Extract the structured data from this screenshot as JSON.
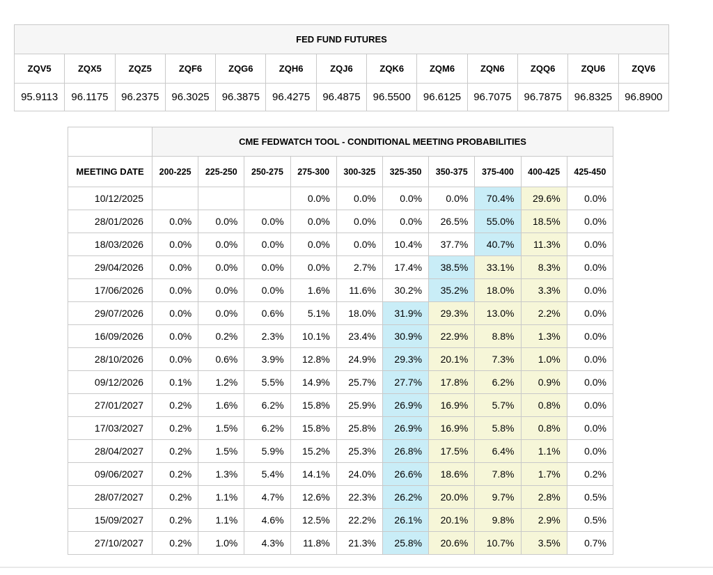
{
  "colors": {
    "blue_highlight": "#c9edf7",
    "yellow_highlight": "#f6f6d8",
    "header_bg": "#f6f6f6",
    "border": "#c9c9c9"
  },
  "chart_data": [
    {
      "type": "table",
      "title": "FED FUND FUTURES",
      "columns": [
        "ZQV5",
        "ZQX5",
        "ZQZ5",
        "ZQF6",
        "ZQG6",
        "ZQH6",
        "ZQJ6",
        "ZQK6",
        "ZQM6",
        "ZQN6",
        "ZQQ6",
        "ZQU6",
        "ZQV6"
      ],
      "values": [
        "95.9113",
        "96.1175",
        "96.2375",
        "96.3025",
        "96.3875",
        "96.4275",
        "96.4875",
        "96.5500",
        "96.6125",
        "96.7075",
        "96.7875",
        "96.8325",
        "96.8900"
      ]
    },
    {
      "type": "table",
      "title": "CME FEDWATCH TOOL - CONDITIONAL MEETING PROBABILITIES",
      "date_column": "MEETING DATE",
      "rate_columns": [
        "200-225",
        "225-250",
        "250-275",
        "275-300",
        "300-325",
        "325-350",
        "350-375",
        "375-400",
        "400-425",
        "425-450"
      ],
      "rows": [
        {
          "date": "10/12/2025",
          "values": [
            "",
            "",
            "",
            "0.0%",
            "0.0%",
            "0.0%",
            "0.0%",
            "70.4%",
            "29.6%",
            "0.0%"
          ],
          "blue": 7,
          "yellow": [
            8
          ]
        },
        {
          "date": "28/01/2026",
          "values": [
            "0.0%",
            "0.0%",
            "0.0%",
            "0.0%",
            "0.0%",
            "0.0%",
            "26.5%",
            "55.0%",
            "18.5%",
            "0.0%"
          ],
          "blue": 7,
          "yellow": [
            8
          ]
        },
        {
          "date": "18/03/2026",
          "values": [
            "0.0%",
            "0.0%",
            "0.0%",
            "0.0%",
            "0.0%",
            "10.4%",
            "37.7%",
            "40.7%",
            "11.3%",
            "0.0%"
          ],
          "blue": 7,
          "yellow": [
            8
          ]
        },
        {
          "date": "29/04/2026",
          "values": [
            "0.0%",
            "0.0%",
            "0.0%",
            "0.0%",
            "2.7%",
            "17.4%",
            "38.5%",
            "33.1%",
            "8.3%",
            "0.0%"
          ],
          "blue": 6,
          "yellow": [
            7,
            8
          ]
        },
        {
          "date": "17/06/2026",
          "values": [
            "0.0%",
            "0.0%",
            "0.0%",
            "1.6%",
            "11.6%",
            "30.2%",
            "35.2%",
            "18.0%",
            "3.3%",
            "0.0%"
          ],
          "blue": 6,
          "yellow": [
            7,
            8
          ]
        },
        {
          "date": "29/07/2026",
          "values": [
            "0.0%",
            "0.0%",
            "0.6%",
            "5.1%",
            "18.0%",
            "31.9%",
            "29.3%",
            "13.0%",
            "2.2%",
            "0.0%"
          ],
          "blue": 5,
          "yellow": [
            6,
            7,
            8
          ]
        },
        {
          "date": "16/09/2026",
          "values": [
            "0.0%",
            "0.2%",
            "2.3%",
            "10.1%",
            "23.4%",
            "30.9%",
            "22.9%",
            "8.8%",
            "1.3%",
            "0.0%"
          ],
          "blue": 5,
          "yellow": [
            6,
            7,
            8
          ]
        },
        {
          "date": "28/10/2026",
          "values": [
            "0.0%",
            "0.6%",
            "3.9%",
            "12.8%",
            "24.9%",
            "29.3%",
            "20.1%",
            "7.3%",
            "1.0%",
            "0.0%"
          ],
          "blue": 5,
          "yellow": [
            6,
            7,
            8
          ]
        },
        {
          "date": "09/12/2026",
          "values": [
            "0.1%",
            "1.2%",
            "5.5%",
            "14.9%",
            "25.7%",
            "27.7%",
            "17.8%",
            "6.2%",
            "0.9%",
            "0.0%"
          ],
          "blue": 5,
          "yellow": [
            6,
            7,
            8
          ]
        },
        {
          "date": "27/01/2027",
          "values": [
            "0.2%",
            "1.6%",
            "6.2%",
            "15.8%",
            "25.9%",
            "26.9%",
            "16.9%",
            "5.7%",
            "0.8%",
            "0.0%"
          ],
          "blue": 5,
          "yellow": [
            6,
            7,
            8
          ]
        },
        {
          "date": "17/03/2027",
          "values": [
            "0.2%",
            "1.5%",
            "6.2%",
            "15.8%",
            "25.8%",
            "26.9%",
            "16.9%",
            "5.8%",
            "0.8%",
            "0.0%"
          ],
          "blue": 5,
          "yellow": [
            6,
            7,
            8
          ]
        },
        {
          "date": "28/04/2027",
          "values": [
            "0.2%",
            "1.5%",
            "5.9%",
            "15.2%",
            "25.3%",
            "26.8%",
            "17.5%",
            "6.4%",
            "1.1%",
            "0.0%"
          ],
          "blue": 5,
          "yellow": [
            6,
            7,
            8
          ]
        },
        {
          "date": "09/06/2027",
          "values": [
            "0.2%",
            "1.3%",
            "5.4%",
            "14.1%",
            "24.0%",
            "26.6%",
            "18.6%",
            "7.8%",
            "1.7%",
            "0.2%"
          ],
          "blue": 5,
          "yellow": [
            6,
            7,
            8
          ]
        },
        {
          "date": "28/07/2027",
          "values": [
            "0.2%",
            "1.1%",
            "4.7%",
            "12.6%",
            "22.3%",
            "26.2%",
            "20.0%",
            "9.7%",
            "2.8%",
            "0.5%"
          ],
          "blue": 5,
          "yellow": [
            6,
            7,
            8
          ]
        },
        {
          "date": "15/09/2027",
          "values": [
            "0.2%",
            "1.1%",
            "4.6%",
            "12.5%",
            "22.2%",
            "26.1%",
            "20.1%",
            "9.8%",
            "2.9%",
            "0.5%"
          ],
          "blue": 5,
          "yellow": [
            6,
            7,
            8
          ]
        },
        {
          "date": "27/10/2027",
          "values": [
            "0.2%",
            "1.0%",
            "4.3%",
            "11.8%",
            "21.3%",
            "25.8%",
            "20.6%",
            "10.7%",
            "3.5%",
            "0.7%"
          ],
          "blue": 5,
          "yellow": [
            6,
            7,
            8
          ]
        }
      ]
    }
  ]
}
